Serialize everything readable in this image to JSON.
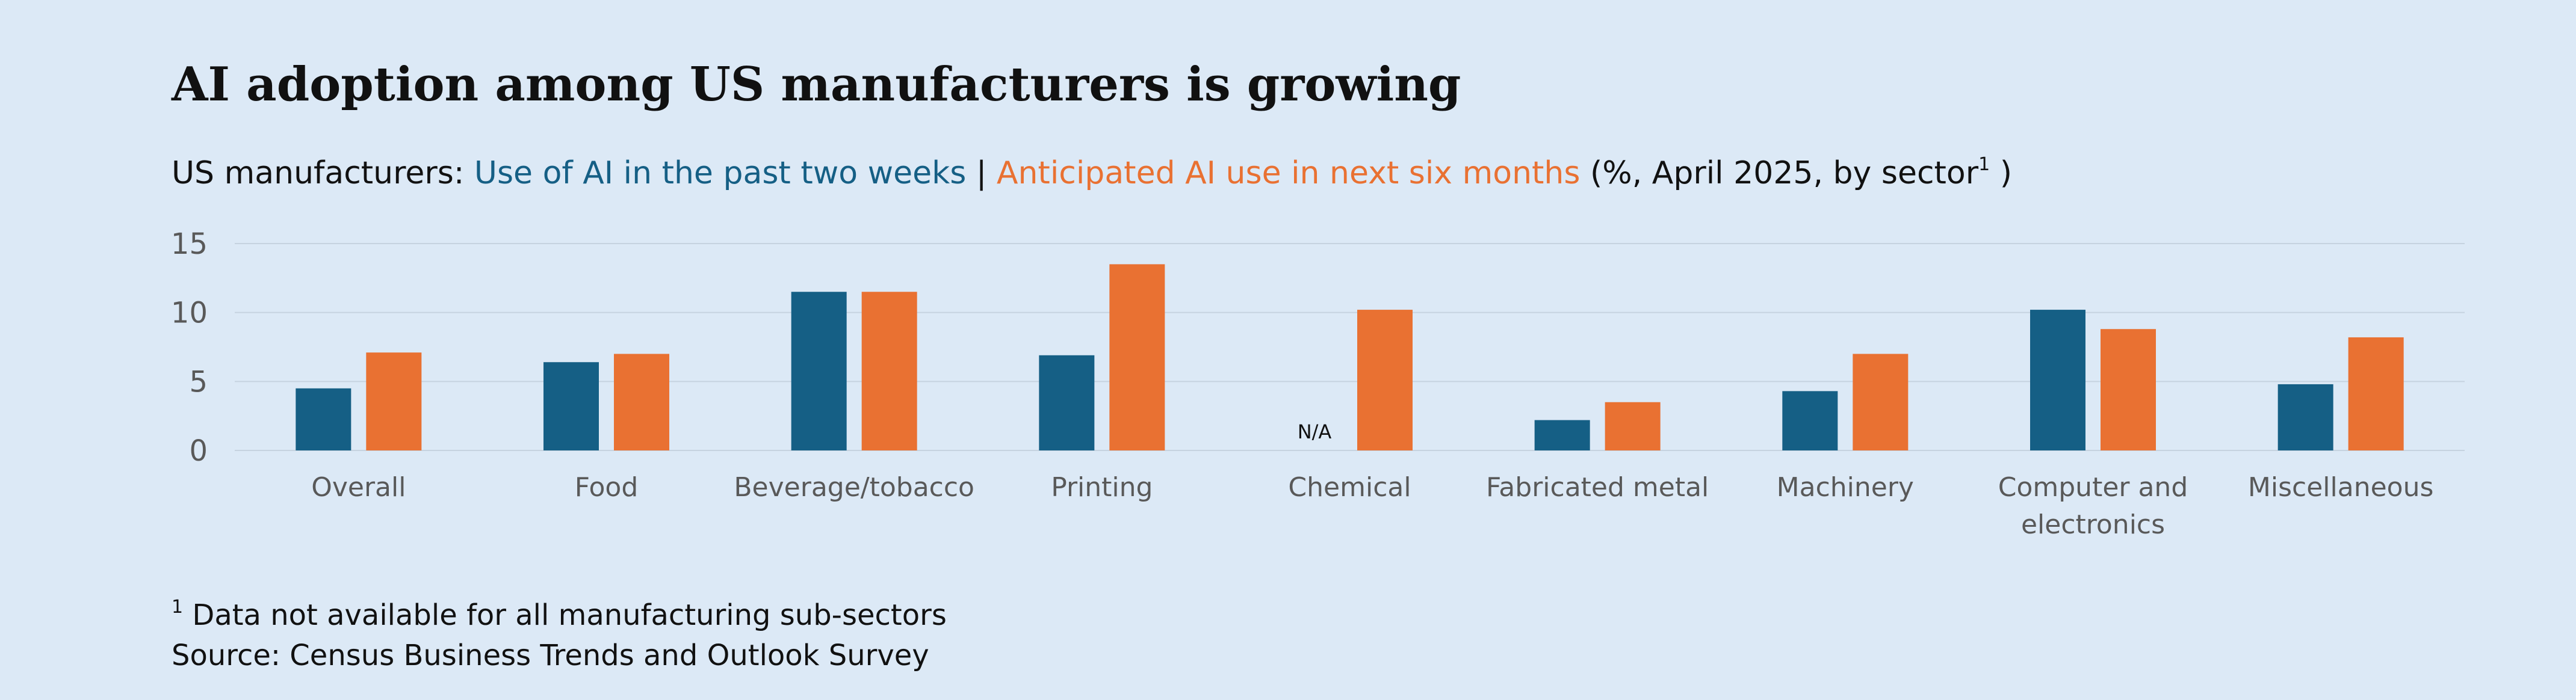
{
  "chart_data": {
    "type": "bar",
    "title": "AI adoption among US manufacturers is growing",
    "subtitle": {
      "prefix": "US manufacturers: ",
      "series1_text": "Use of AI in the past two weeks",
      "separator": " | ",
      "series2_text": "Anticipated AI use in next six months",
      "suffix_start": " (%, April 2025, by sector",
      "suffix_sup": "1",
      "suffix_end": " )"
    },
    "categories": [
      [
        "Overall"
      ],
      [
        "Food"
      ],
      [
        "Beverage/tobacco"
      ],
      [
        "Printing"
      ],
      [
        "Chemical"
      ],
      [
        "Fabricated metal"
      ],
      [
        "Machinery"
      ],
      [
        "Computer and",
        "electronics"
      ],
      [
        "Miscellaneous"
      ]
    ],
    "series": [
      {
        "name": "Use of AI in the past two weeks",
        "color": "#155f85",
        "values": [
          4.5,
          6.4,
          11.5,
          6.9,
          null,
          2.2,
          4.3,
          10.2,
          4.8
        ]
      },
      {
        "name": "Anticipated AI use in next six months",
        "color": "#e97132",
        "values": [
          7.1,
          7.0,
          11.5,
          13.5,
          10.2,
          3.5,
          7.0,
          8.8,
          8.2
        ]
      }
    ],
    "missing_label": "N/A",
    "ylim": [
      0,
      15
    ],
    "yticks": [
      0,
      5,
      10,
      15
    ],
    "grid": true,
    "legend": "none (series named in subtitle)"
  },
  "footnote": {
    "marker": "1",
    "text": " Data not available for all manufacturing sub-sectors"
  },
  "source": "Source: Census Business Trends and Outlook Survey",
  "colors": {
    "background": "#dce9f6",
    "series1": "#155f85",
    "series2": "#e97132",
    "grid": "#c6d3e0",
    "tick_text": "#595959"
  }
}
